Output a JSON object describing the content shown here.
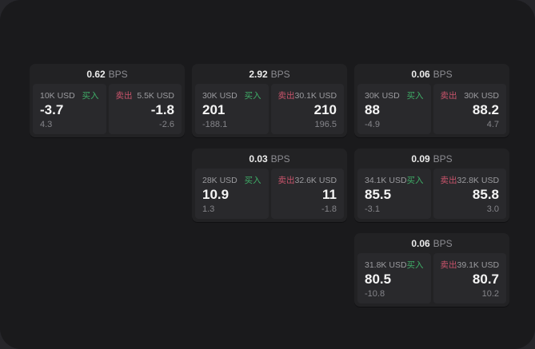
{
  "labels": {
    "buy": "买入",
    "sell": "卖出",
    "bps_unit": "BPS"
  },
  "colors": {
    "buy_green": "#3fae68",
    "sell_red": "#c9546b",
    "window_bg": "#1a1a1c",
    "card_bg": "#222224",
    "panel_bg": "#29292c"
  },
  "cards": [
    {
      "bps": "0.62",
      "buy": {
        "amount": "10K USD",
        "price": "-3.7",
        "delta": "4.3"
      },
      "sell": {
        "amount": "5.5K USD",
        "price": "-1.8",
        "delta": "-2.6"
      }
    },
    {
      "bps": "2.92",
      "buy": {
        "amount": "30K USD",
        "price": "201",
        "delta": "-188.1"
      },
      "sell": {
        "amount": "30.1K USD",
        "price": "210",
        "delta": "196.5"
      }
    },
    {
      "bps": "0.06",
      "buy": {
        "amount": "30K USD",
        "price": "88",
        "delta": "-4.9"
      },
      "sell": {
        "amount": "30K USD",
        "price": "88.2",
        "delta": "4.7"
      }
    },
    {
      "bps": "0.03",
      "buy": {
        "amount": "28K USD",
        "price": "10.9",
        "delta": "1.3"
      },
      "sell": {
        "amount": "32.6K USD",
        "price": "11",
        "delta": "-1.8"
      }
    },
    {
      "bps": "0.09",
      "buy": {
        "amount": "34.1K USD",
        "price": "85.5",
        "delta": "-3.1"
      },
      "sell": {
        "amount": "32.8K USD",
        "price": "85.8",
        "delta": "3.0"
      }
    },
    {
      "bps": "0.06",
      "buy": {
        "amount": "31.8K USD",
        "price": "80.5",
        "delta": "-10.8"
      },
      "sell": {
        "amount": "39.1K USD",
        "price": "80.7",
        "delta": "10.2"
      }
    }
  ]
}
